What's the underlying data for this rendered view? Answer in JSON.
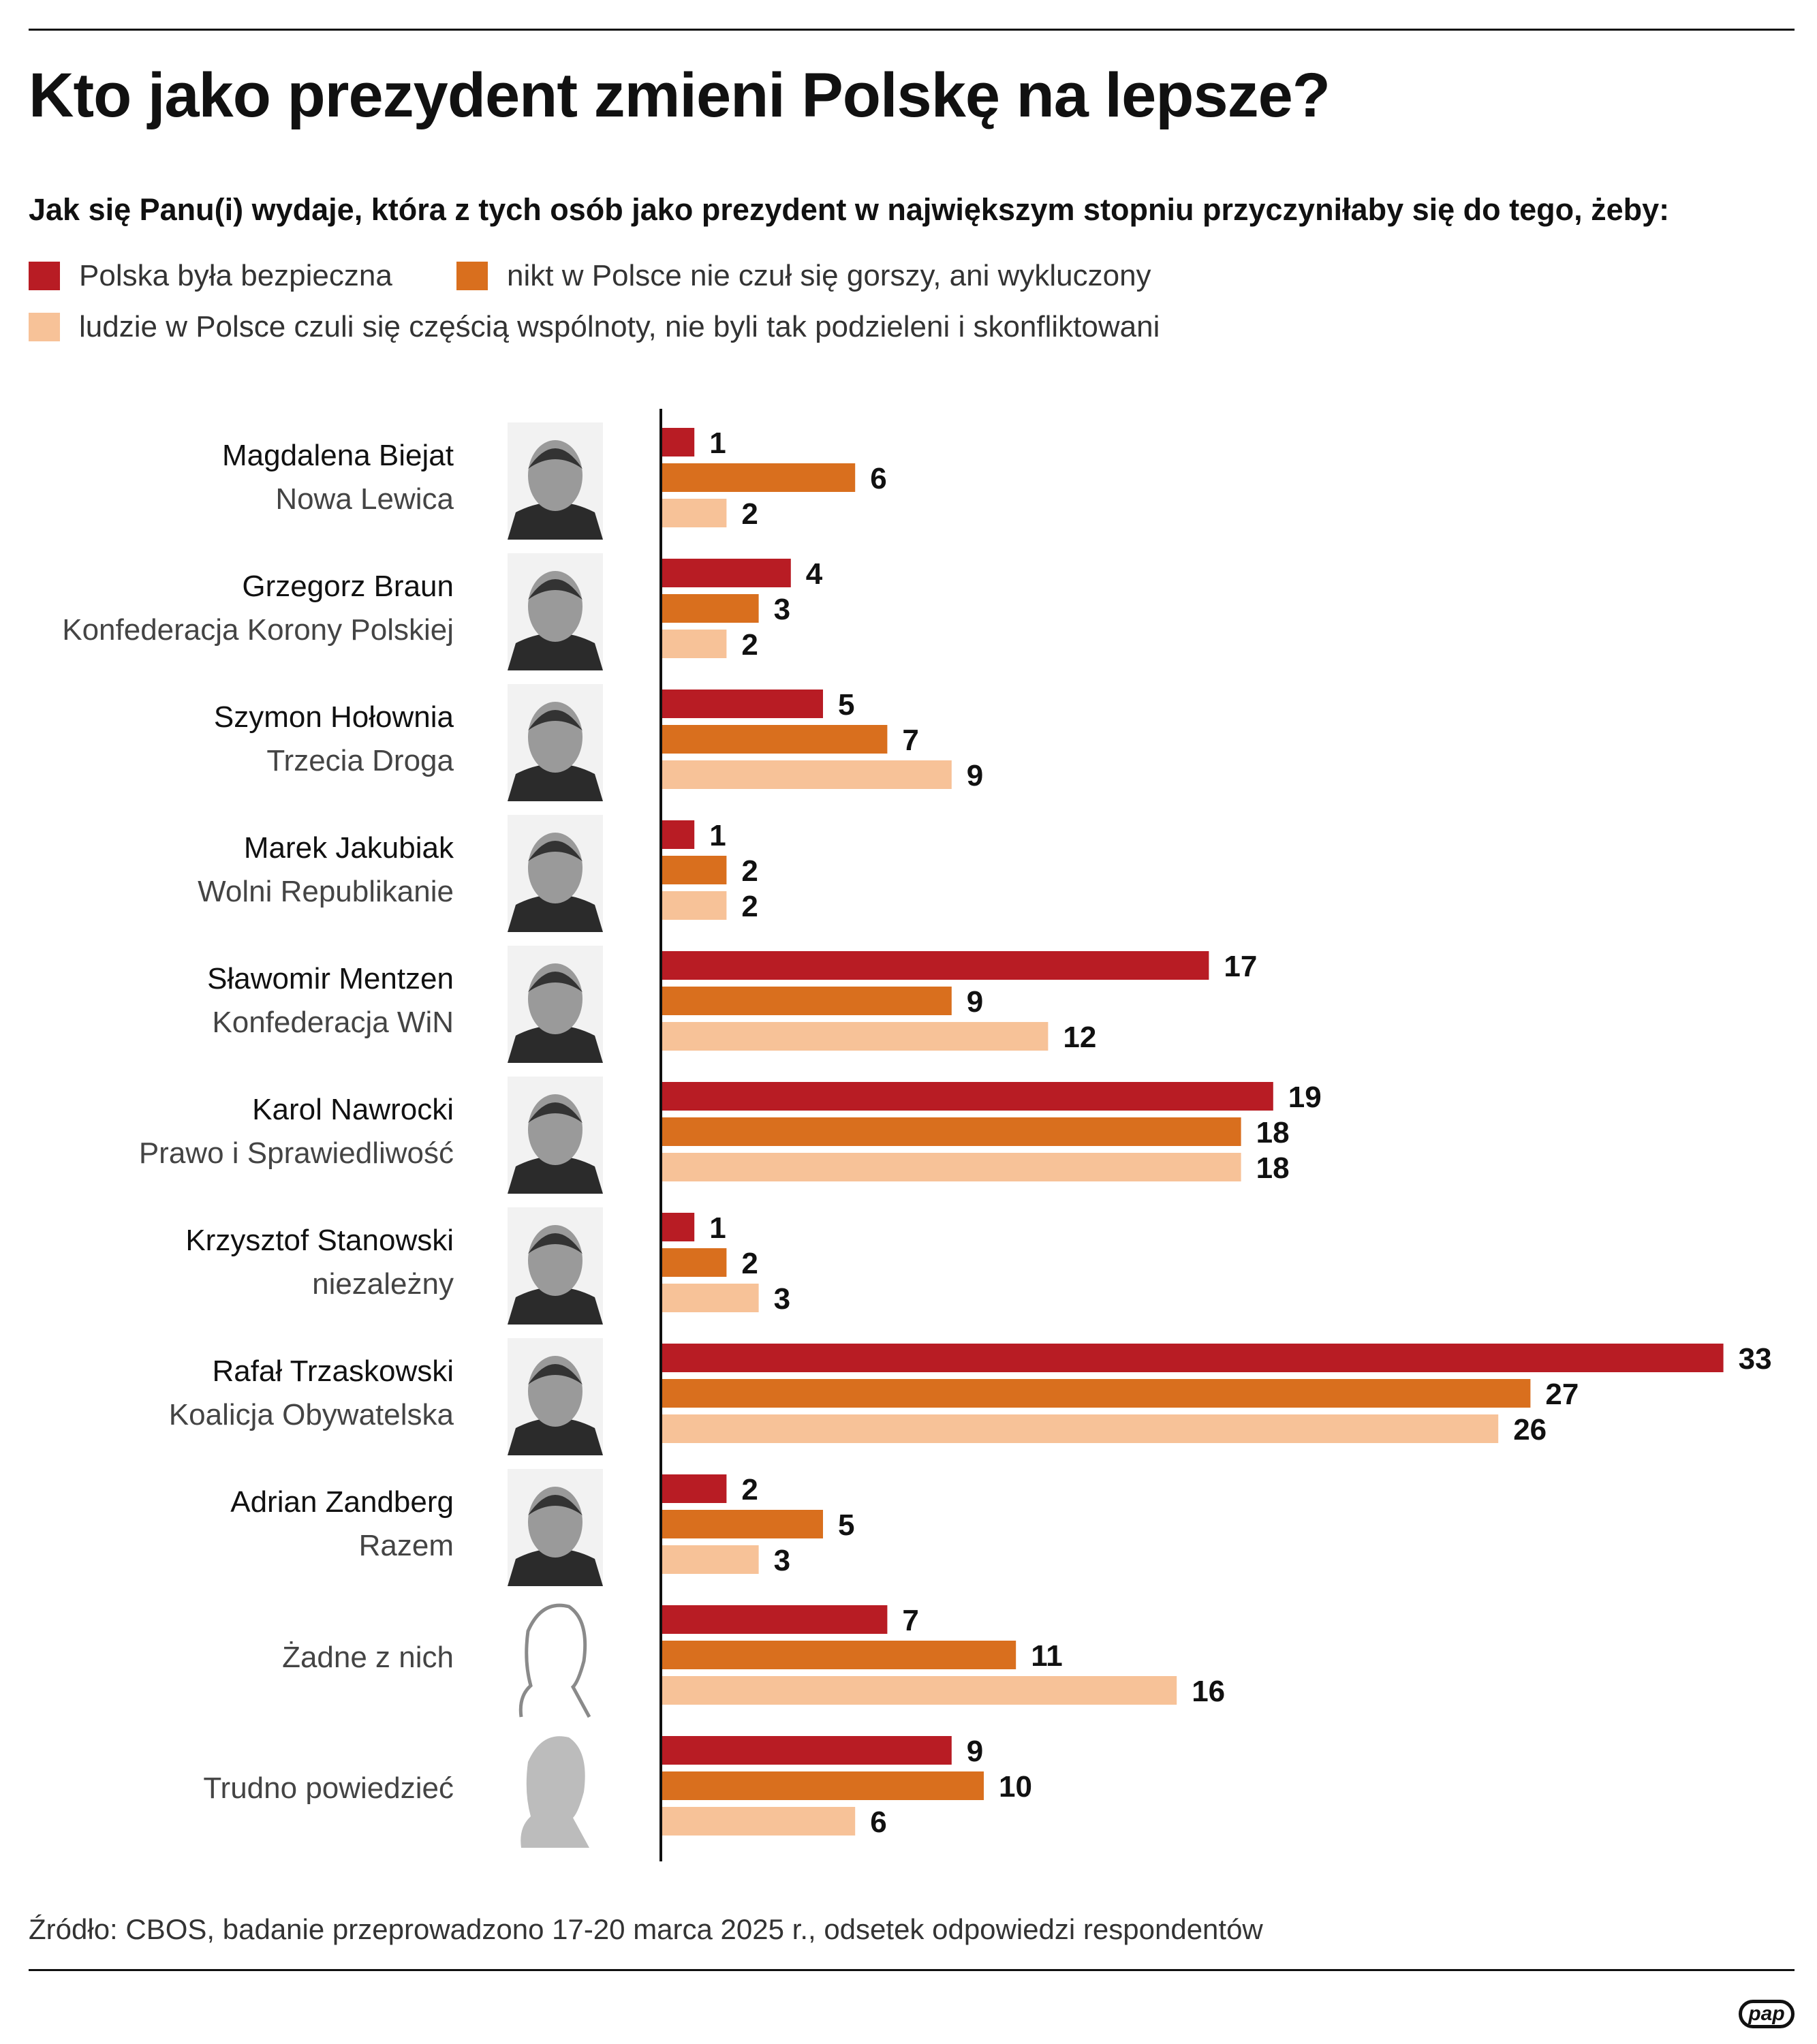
{
  "title": "Kto jako prezydent zmieni Polskę na lepsze?",
  "subtitle": "Jak się Panu(i) wydaje, która z tych osób jako prezydent w największym stopniu przyczyniłaby się do tego, żeby:",
  "legend": [
    {
      "label": "Polska była bezpieczna",
      "color": "#b81c24"
    },
    {
      "label": "nikt w Polsce nie czuł się gorszy, ani wykluczony",
      "color": "#d96f1e"
    },
    {
      "label": "ludzie w Polsce czuli się częścią wspólnoty, nie byli tak podzieleni i skonfliktowani",
      "color": "#f7c298"
    }
  ],
  "chart_data": {
    "type": "bar",
    "orientation": "horizontal",
    "title": "Kto jako prezydent zmieni Polskę na lepsze?",
    "unit": "%",
    "categories": [
      {
        "name": "Magdalena Biejat",
        "party": "Nowa Lewica",
        "icon": "portrait-photo"
      },
      {
        "name": "Grzegorz Braun",
        "party": "Konfederacja Korony Polskiej",
        "icon": "portrait-photo"
      },
      {
        "name": "Szymon Hołownia",
        "party": "Trzecia Droga",
        "icon": "portrait-photo"
      },
      {
        "name": "Marek Jakubiak",
        "party": "Wolni Republikanie",
        "icon": "portrait-photo"
      },
      {
        "name": "Sławomir Mentzen",
        "party": "Konfederacja WiN",
        "icon": "portrait-photo"
      },
      {
        "name": "Karol Nawrocki",
        "party": "Prawo i Sprawiedliwość",
        "icon": "portrait-photo"
      },
      {
        "name": "Krzysztof Stanowski",
        "party": "niezależny",
        "icon": "portrait-photo"
      },
      {
        "name": "Rafał Trzaskowski",
        "party": "Koalicja Obywatelska",
        "icon": "portrait-photo"
      },
      {
        "name": "Adrian Zandberg",
        "party": "Razem",
        "icon": "portrait-photo"
      },
      {
        "name": "",
        "party": "Żadne z nich",
        "icon": "outline-head-icon"
      },
      {
        "name": "",
        "party": "Trudno powiedzieć",
        "icon": "gray-head-icon"
      }
    ],
    "series": [
      {
        "name": "Polska była bezpieczna",
        "color": "#b81c24",
        "values": [
          1,
          4,
          5,
          1,
          17,
          19,
          1,
          33,
          2,
          7,
          9
        ]
      },
      {
        "name": "nikt w Polsce nie czuł się gorszy, ani wykluczony",
        "color": "#d96f1e",
        "values": [
          6,
          3,
          7,
          2,
          9,
          18,
          2,
          27,
          5,
          11,
          10
        ]
      },
      {
        "name": "ludzie w Polsce czuli się częścią wspólnoty, nie byli tak podzieleni i skonfliktowani",
        "color": "#f7c298",
        "values": [
          2,
          2,
          9,
          2,
          12,
          18,
          3,
          26,
          3,
          16,
          6
        ]
      }
    ],
    "xlim": [
      0,
      33
    ],
    "grid": false
  },
  "source": "Źródło: CBOS, badanie przeprowadzono 17-20 marca 2025 r., odsetek odpowiedzi respondentów",
  "logo_text": "pap"
}
